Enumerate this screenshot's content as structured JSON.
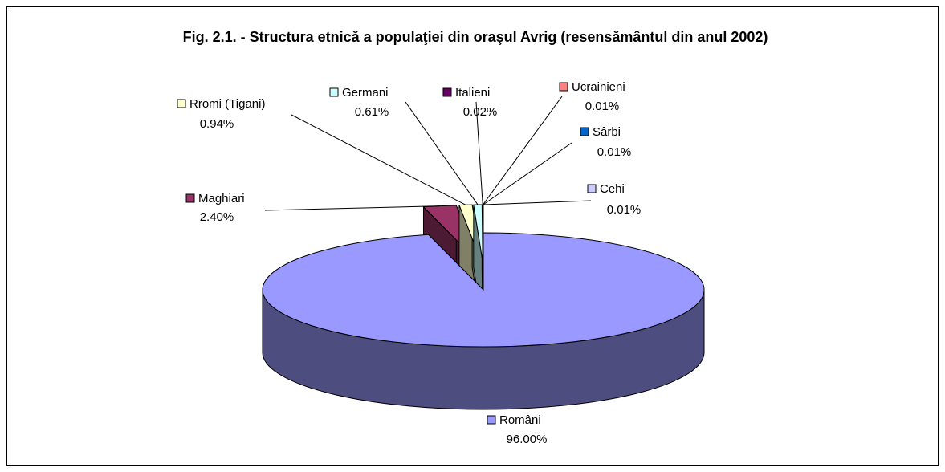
{
  "chart_data": {
    "type": "pie3d",
    "title": "Fig. 2.1. - Structura etnică a populaţiei din oraşul Avrig (resensământul din anul 2002)",
    "categories": [
      "Români",
      "Maghiari",
      "Rromi (Tigani)",
      "Germani",
      "Italieni",
      "Ucrainieni",
      "Sârbi",
      "Cehi"
    ],
    "values": [
      96,
      2.4,
      0.94,
      0.61,
      0.02,
      0.01,
      0.01,
      0.01
    ],
    "value_labels": [
      "96.00%",
      "2.40%",
      "0.94%",
      "0.61%",
      "0.02%",
      "0.01%",
      "0.01%",
      "0.01%"
    ],
    "colors": [
      "#9999ff",
      "#993366",
      "#ffffcc",
      "#ccffff",
      "#660066",
      "#ff8080",
      "#0066cc",
      "#ccccff"
    ],
    "legend": "labels"
  }
}
